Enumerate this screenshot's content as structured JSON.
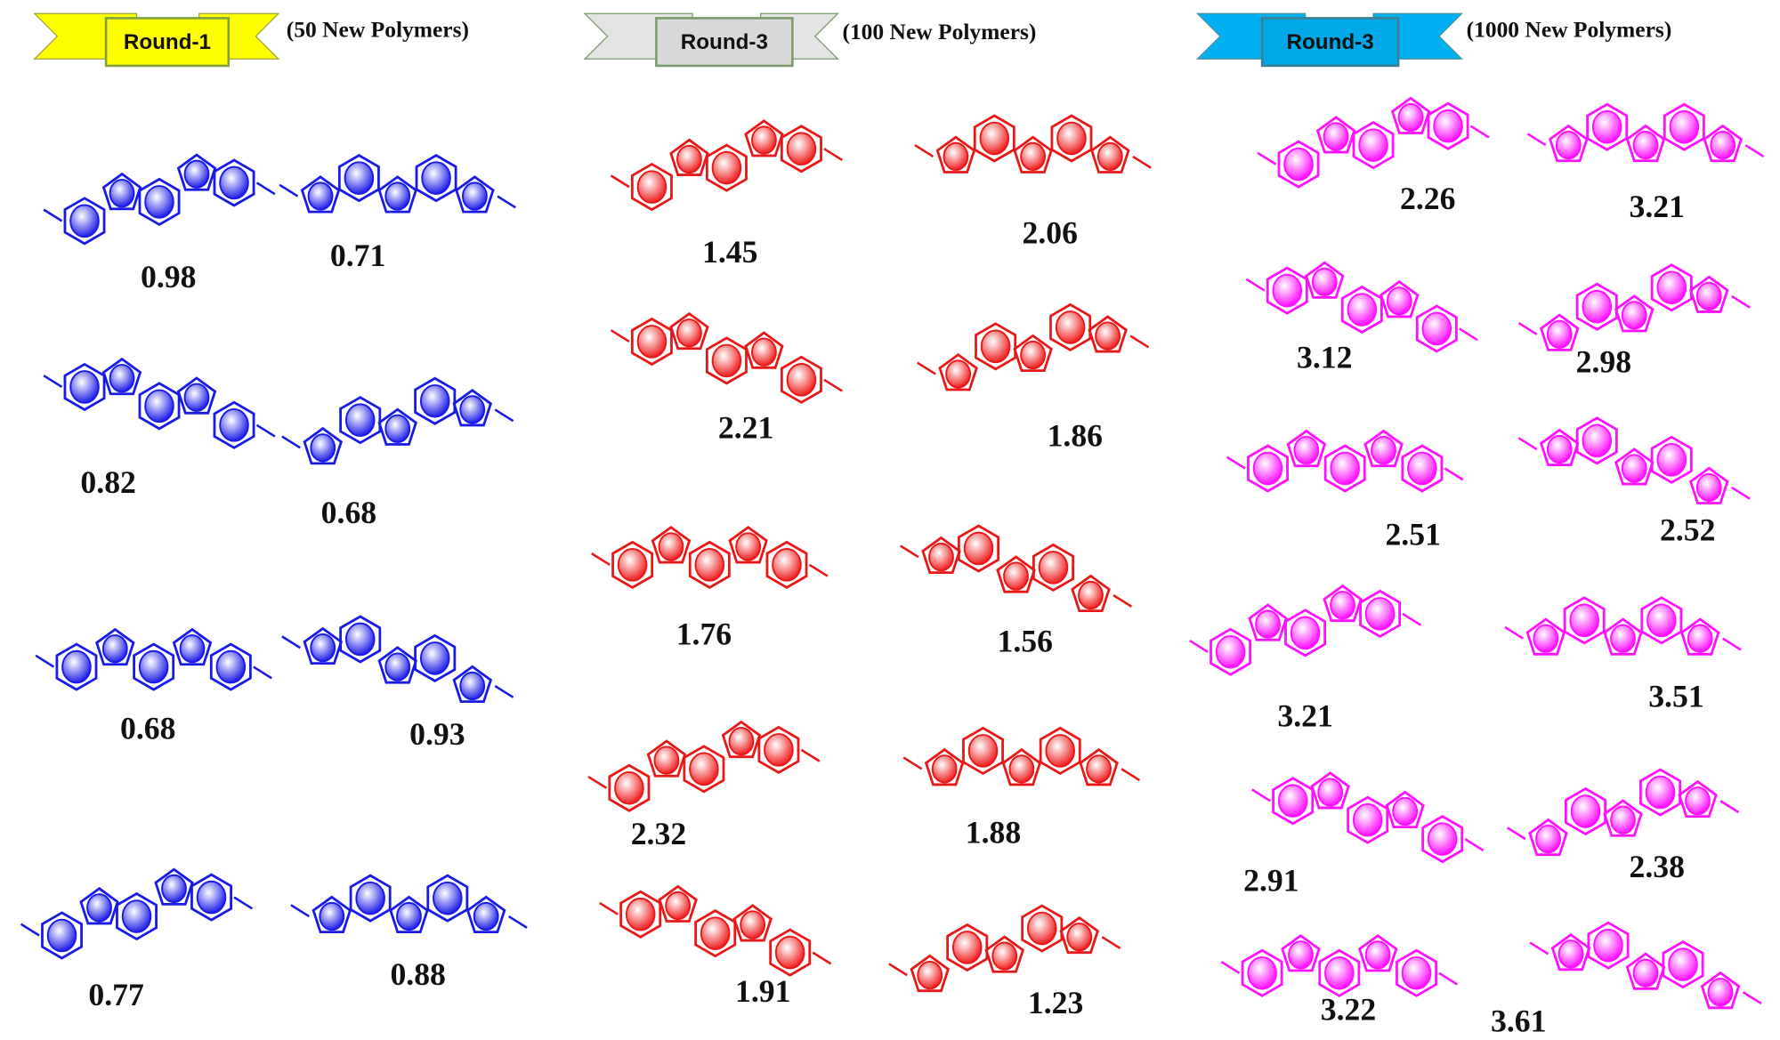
{
  "columns": [
    {
      "label": "Round-1",
      "note": "(50 New Polymers)",
      "items": [
        {
          "value": 0.98
        },
        {
          "value": 0.71
        },
        {
          "value": 0.82
        },
        {
          "value": 0.68
        },
        {
          "value": 0.68
        },
        {
          "value": 0.93
        },
        {
          "value": 0.77
        },
        {
          "value": 0.88
        }
      ]
    },
    {
      "label": "Round-3",
      "note": "(100 New Polymers)",
      "items": [
        {
          "value": 1.45
        },
        {
          "value": 2.06
        },
        {
          "value": 2.21
        },
        {
          "value": 1.86
        },
        {
          "value": 1.76
        },
        {
          "value": 1.56
        },
        {
          "value": 2.32
        },
        {
          "value": 1.88
        },
        {
          "value": 1.91
        },
        {
          "value": 1.23
        }
      ]
    },
    {
      "label": "Round-3",
      "note": "(1000 New Polymers)",
      "items": [
        {
          "value": 2.26
        },
        {
          "value": 3.21
        },
        {
          "value": 3.12
        },
        {
          "value": 2.98
        },
        {
          "value": 2.51
        },
        {
          "value": 2.52
        },
        {
          "value": 3.21
        },
        {
          "value": 3.51
        },
        {
          "value": 2.91
        },
        {
          "value": 2.38
        },
        {
          "value": 3.22
        },
        {
          "value": 3.61
        }
      ]
    }
  ]
}
